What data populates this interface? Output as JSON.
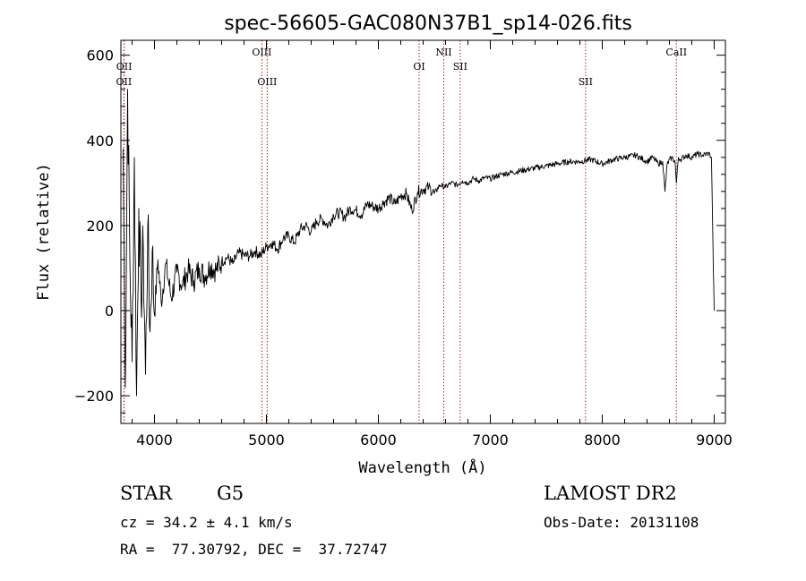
{
  "chart_data": {
    "type": "line",
    "title": "spec-56605-GAC080N37B1_sp14-026.fits",
    "xlabel": "Wavelength (Å)",
    "ylabel": "Flux (relative)",
    "xlim": [
      3700,
      9100
    ],
    "ylim": [
      -265,
      635
    ],
    "x_ticks": [
      4000,
      5000,
      6000,
      7000,
      8000,
      9000
    ],
    "y_ticks": [
      -200,
      0,
      200,
      400,
      600
    ],
    "series": [
      {
        "color": "#000000",
        "x": [
          3720,
          3740,
          3760,
          3780,
          3800,
          3820,
          3840,
          3860,
          3880,
          3900,
          3920,
          3940,
          3960,
          3980,
          4000,
          4030,
          4060,
          4100,
          4150,
          4200,
          4250,
          4300,
          4350,
          4400,
          4450,
          4500,
          4550,
          4600,
          4650,
          4700,
          4750,
          4800,
          4850,
          4900,
          4950,
          5000,
          5050,
          5100,
          5150,
          5200,
          5250,
          5300,
          5350,
          5400,
          5450,
          5500,
          5550,
          5600,
          5650,
          5700,
          5750,
          5800,
          5850,
          5900,
          5950,
          6000,
          6050,
          6100,
          6150,
          6200,
          6250,
          6300,
          6350,
          6400,
          6450,
          6500,
          6550,
          6600,
          6650,
          6700,
          6750,
          6800,
          6850,
          6900,
          6950,
          7000,
          7100,
          7200,
          7300,
          7400,
          7500,
          7600,
          7700,
          7800,
          7900,
          8000,
          8100,
          8200,
          8300,
          8400,
          8450,
          8500,
          8540,
          8560,
          8580,
          8620,
          8650,
          8662,
          8680,
          8700,
          8750,
          8800,
          8850,
          8900,
          8950,
          8975,
          8985,
          8992,
          9000
        ],
        "y": [
          380,
          -180,
          520,
          120,
          -120,
          360,
          -200,
          240,
          20,
          150,
          -150,
          200,
          -50,
          140,
          -10,
          120,
          20,
          110,
          30,
          90,
          60,
          95,
          70,
          100,
          80,
          105,
          95,
          115,
          125,
          110,
          135,
          130,
          128,
          140,
          130,
          150,
          160,
          145,
          170,
          175,
          160,
          190,
          200,
          185,
          210,
          215,
          200,
          225,
          230,
          220,
          240,
          235,
          225,
          250,
          245,
          240,
          255,
          265,
          250,
          270,
          275,
          235,
          278,
          285,
          290,
          275,
          295,
          290,
          300,
          295,
          305,
          300,
          310,
          305,
          312,
          310,
          320,
          325,
          330,
          335,
          340,
          345,
          350,
          350,
          355,
          345,
          355,
          360,
          365,
          350,
          360,
          345,
          350,
          280,
          345,
          360,
          350,
          300,
          360,
          355,
          365,
          360,
          368,
          365,
          370,
          360,
          220,
          100,
          0
        ]
      }
    ],
    "lines": [
      {
        "label": "OII",
        "x": 3727,
        "row": 2
      },
      {
        "label": "OII",
        "x": 3729,
        "row": 1
      },
      {
        "label": "OIII",
        "x": 4959,
        "row": 0
      },
      {
        "label": "OIII",
        "x": 5007,
        "row": 2
      },
      {
        "label": "OI",
        "x": 6364,
        "row": 1
      },
      {
        "label": "NII",
        "x": 6584,
        "row": 0
      },
      {
        "label": "SII",
        "x": 6731,
        "row": 1
      },
      {
        "label": "SII",
        "x": 7851,
        "row": 2
      },
      {
        "label": "CaII",
        "x": 8662,
        "row": 0
      }
    ],
    "line_color": "#aa2222",
    "grid": false
  },
  "info": {
    "class_label": "STAR",
    "subclass": "G5",
    "survey": "LAMOST DR2",
    "redshift": "cz = 34.2 ± 4.1 km/s",
    "obs_date": "Obs-Date: 20131108",
    "coords": "RA =  77.30792, DEC =  37.72747"
  }
}
